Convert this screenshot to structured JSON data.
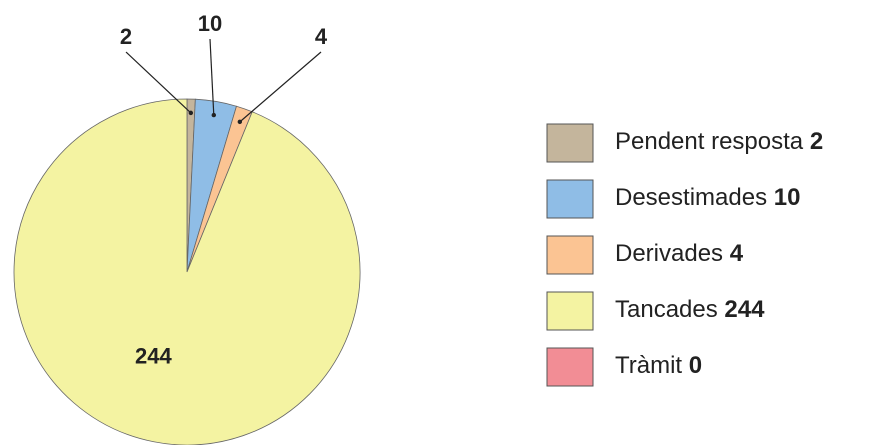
{
  "chart_data": {
    "type": "pie",
    "categories": [
      "Pendent resposta",
      "Desestimades",
      "Derivades",
      "Tancades",
      "Tràmit"
    ],
    "values": [
      2,
      10,
      4,
      244,
      0
    ],
    "colors": [
      "#c4b59c",
      "#8fbde6",
      "#fbc493",
      "#f4f3a2",
      "#f28d95"
    ],
    "legend": "right"
  }
}
